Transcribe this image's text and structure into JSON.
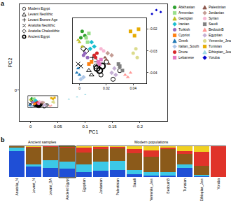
{
  "chart_data": [
    {
      "type": "scatter",
      "title": "a",
      "x_label": "PC1",
      "y_label": "PC2",
      "xlim": [
        -0.02,
        0.25
      ],
      "xticks": [
        0,
        0.05,
        0.1,
        0.15,
        0.2
      ],
      "ylim": [
        -0.08,
        0.22
      ],
      "yticks": [
        0
      ],
      "inset": {
        "xlim": [
          -0.005,
          0.05
        ],
        "xticks": [
          0,
          0.02,
          0.04
        ],
        "ylim": [
          -0.045,
          -0.015
        ],
        "yticks": [
          -0.02,
          -0.03,
          -0.04
        ]
      },
      "series": [
        {
          "name": "Modern Egypt",
          "color": "#000000",
          "marker": "circle-open",
          "legend": "upper left",
          "x": [
            0.012,
            0.016,
            0.02,
            0.025,
            0.03
          ],
          "values": [
            -0.037,
            -0.041,
            -0.035,
            -0.043,
            -0.039
          ]
        },
        {
          "name": "Levant Neolithic",
          "color": "#000000",
          "marker": "triangle-up-open",
          "legend": "upper left",
          "x": [
            0.007,
            0.009
          ],
          "values": [
            -0.039,
            -0.041
          ]
        },
        {
          "name": "Levant Bronze Age",
          "color": "#000000",
          "marker": "cross-thin-open",
          "legend": "upper left",
          "x": [
            0.01,
            0.013
          ],
          "values": [
            -0.033,
            -0.035
          ]
        },
        {
          "name": "Anatolia Neolithic",
          "color": "#000000",
          "marker": "x-thin-open",
          "legend": "upper left",
          "x": [
            -0.001,
            0.001
          ],
          "values": [
            -0.036,
            -0.037
          ]
        },
        {
          "name": "Anatolia Chalcolithic",
          "color": "#000000",
          "marker": "diamond-open",
          "legend": "upper left",
          "x": [
            0.003,
            0.005
          ],
          "values": [
            -0.029,
            -0.03
          ]
        },
        {
          "name": "Ancient Egypt",
          "color": "#000000",
          "marker": "ring",
          "legend": "upper left",
          "x": [
            0.013,
            0.015,
            0.017
          ],
          "values": [
            -0.038,
            -0.039,
            -0.037
          ]
        },
        {
          "name": "Abkhasian",
          "color": "#2ca02c",
          "marker": "circle",
          "legend": "right",
          "x": [
            0.002,
            0.004,
            0.001
          ],
          "values": [
            -0.021,
            -0.023,
            -0.024
          ]
        },
        {
          "name": "Armenian",
          "color": "#98df8a",
          "marker": "square",
          "legend": "right",
          "x": [
            0.005,
            0.007,
            0.006
          ],
          "values": [
            -0.024,
            -0.022,
            -0.026
          ]
        },
        {
          "name": "Georgian",
          "color": "#bcbd22",
          "marker": "triangle-up",
          "legend": "right",
          "x": [
            0.0,
            0.002,
            -0.001
          ],
          "values": [
            -0.026,
            -0.028,
            -0.025
          ]
        },
        {
          "name": "Iranian",
          "color": "#17becf",
          "marker": "diamond",
          "legend": "right",
          "x": [
            0.009,
            0.011,
            0.008
          ],
          "values": [
            -0.026,
            -0.028,
            -0.029
          ]
        },
        {
          "name": "Turkish",
          "color": "#9467bd",
          "marker": "circle",
          "legend": "right",
          "x": [
            0.004,
            0.006,
            0.003
          ],
          "values": [
            -0.031,
            -0.033,
            -0.032
          ]
        },
        {
          "name": "Cypriot",
          "color": "#ff7f0e",
          "marker": "square",
          "legend": "right",
          "x": [
            0.007,
            0.009
          ],
          "values": [
            -0.036,
            -0.035
          ]
        },
        {
          "name": "Greek",
          "color": "#1f77b4",
          "marker": "triangle-up",
          "legend": "right",
          "x": [
            -0.002,
            0.0,
            -0.001
          ],
          "values": [
            -0.04,
            -0.041,
            -0.038
          ]
        },
        {
          "name": "Italian_South",
          "color": "#aec7e8",
          "marker": "diamond",
          "legend": "right",
          "x": [
            0.001,
            0.003
          ],
          "values": [
            -0.043,
            -0.042
          ]
        },
        {
          "name": "Druze",
          "color": "#d62728",
          "marker": "circle",
          "legend": "right",
          "x": [
            0.012,
            0.013,
            0.011
          ],
          "values": [
            -0.033,
            -0.031,
            -0.032
          ]
        },
        {
          "name": "Lebanese",
          "color": "#e377c2",
          "marker": "square",
          "legend": "right",
          "x": [
            0.014,
            0.016,
            0.015
          ],
          "values": [
            -0.035,
            -0.034,
            -0.036
          ]
        },
        {
          "name": "Palestinian",
          "color": "#8c564b",
          "marker": "triangle-up",
          "legend": "right",
          "x": [
            0.02,
            0.022,
            0.019
          ],
          "values": [
            -0.034,
            -0.036,
            -0.033
          ]
        },
        {
          "name": "Jordanian",
          "color": "#c49c94",
          "marker": "diamond",
          "legend": "right",
          "x": [
            0.021,
            0.024
          ],
          "values": [
            -0.031,
            -0.032
          ]
        },
        {
          "name": "Syrian",
          "color": "#f7b6d2",
          "marker": "circle",
          "legend": "right",
          "x": [
            0.016,
            0.018
          ],
          "values": [
            -0.029,
            -0.03
          ]
        },
        {
          "name": "Saudi",
          "color": "#7f7f7f",
          "marker": "square",
          "legend": "right",
          "x": [
            0.03,
            0.032,
            0.029
          ],
          "values": [
            -0.037,
            -0.039,
            -0.036
          ]
        },
        {
          "name": "BedouinB",
          "color": "#ff9896",
          "marker": "triangle-up",
          "legend": "right",
          "x": [
            0.034,
            0.036,
            0.038
          ],
          "values": [
            -0.041,
            -0.042,
            -0.04
          ]
        },
        {
          "name": "Egyptian",
          "color": "#c5b0d5",
          "marker": "diamond",
          "legend": "right",
          "x": [
            0.024,
            0.027,
            0.026
          ],
          "values": [
            -0.04,
            -0.041,
            -0.038
          ]
        },
        {
          "name": "Yemenite_Jew",
          "color": "#dbdb8d",
          "marker": "circle",
          "legend": "right",
          "x": [
            0.04,
            0.042,
            0.043
          ],
          "values": [
            -0.031,
            -0.029,
            -0.033
          ]
        },
        {
          "name": "Tunisian",
          "color": "#e6ab02",
          "marker": "square",
          "legend": "right",
          "x": [
            0.038,
            0.041,
            0.044
          ],
          "values": [
            -0.021,
            -0.023,
            -0.02
          ]
        },
        {
          "name": "Ethiopian_Jew",
          "color": "#9edae5",
          "marker": "triangle-up",
          "legend": "right",
          "x": [
            0.07,
            0.085,
            0.1
          ],
          "values": [
            -0.024,
            -0.018,
            -0.012
          ]
        },
        {
          "name": "Yoruba",
          "color": "#0000cc",
          "marker": "diamond",
          "legend": "right",
          "x": [
            0.222,
            0.23,
            0.238
          ],
          "values": [
            0.195,
            0.205,
            0.2
          ]
        }
      ]
    },
    {
      "type": "bar",
      "title": "b",
      "stacked": true,
      "tick_labels": "x",
      "categories": [
        "Anatolia_N",
        "Levant_N",
        "Levant_BA",
        "Ancient Egypt",
        "Egyptian",
        "Jordanian",
        "Palestinian",
        "Saudi",
        "Yemenite_Jew",
        "BedouinB",
        "Tunisian",
        "Ethiopian_Jew",
        "Yoruba"
      ],
      "ylim": [
        0,
        1
      ],
      "annotations": [
        {
          "text": "Ancient samples",
          "from": "Anatolia_N",
          "to": "Ancient Egypt"
        },
        {
          "text": "Modern populations",
          "from": "Egyptian",
          "to": "Yoruba"
        }
      ],
      "series": [
        {
          "color": "#1f4fd6",
          "values": [
            0.85,
            0.35,
            0.3,
            0.28,
            0.15,
            0.2,
            0.22,
            0.08,
            0.05,
            0.05,
            0.3,
            0.02,
            0
          ]
        },
        {
          "color": "#3cc8e6",
          "values": [
            0.1,
            0.05,
            0.25,
            0.22,
            0.25,
            0.3,
            0.3,
            0.15,
            0.12,
            0.1,
            0.1,
            0.05,
            0
          ]
        },
        {
          "color": "#8b5a1a",
          "values": [
            0.05,
            0.55,
            0.42,
            0.45,
            0.4,
            0.42,
            0.42,
            0.55,
            0.5,
            0.75,
            0.35,
            0.3,
            0
          ]
        },
        {
          "color": "#e0332a",
          "values": [
            0,
            0.03,
            0.02,
            0.03,
            0.15,
            0.05,
            0.04,
            0.12,
            0.2,
            0.05,
            0.1,
            0.45,
            1
          ]
        },
        {
          "color": "#f0d020",
          "values": [
            0,
            0.02,
            0.01,
            0.02,
            0.05,
            0.03,
            0.02,
            0.1,
            0.13,
            0.05,
            0.15,
            0.18,
            0
          ]
        }
      ]
    }
  ]
}
